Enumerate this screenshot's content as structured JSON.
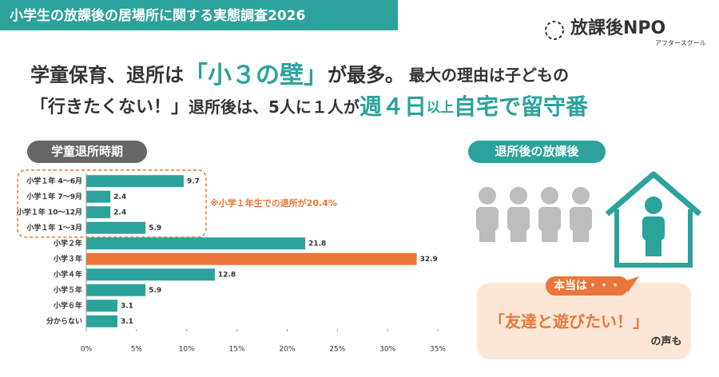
{
  "header": {
    "title": "小学生の放課後の居場所に関する実態調査2026",
    "logo": "放課後NPO",
    "logo_sub": "アフタースクール"
  },
  "headline": {
    "line1": [
      "学童保育、退所は",
      "「小３の壁」",
      "が最多。",
      "最大の理由は子どもの"
    ],
    "line2": [
      "「行きたくない！」",
      "退所後は、5人に１人が",
      "週４日",
      "以上",
      "自宅で留守番"
    ]
  },
  "chart_data": {
    "type": "bar",
    "orientation": "horizontal",
    "title": "学童退所時期",
    "categories": [
      "小学１年 4～6月",
      "小学１年 7～9月",
      "小学１年 10～12月",
      "小学１年 1～3月",
      "小学２年",
      "小学３年",
      "小学４年",
      "小学５年",
      "小学６年",
      "分からない"
    ],
    "values": [
      9.7,
      2.4,
      2.4,
      5.9,
      21.8,
      32.9,
      12.8,
      5.9,
      3.1,
      3.1
    ],
    "colors": [
      "#2ba39b",
      "#2ba39b",
      "#2ba39b",
      "#2ba39b",
      "#2ba39b",
      "#e9763a",
      "#2ba39b",
      "#2ba39b",
      "#2ba39b",
      "#2ba39b"
    ],
    "xlim": [
      0,
      35
    ],
    "xticks": [
      {
        "value": 0,
        "label": "0%"
      },
      {
        "value": 5,
        "label": "5%"
      },
      {
        "value": 10,
        "label": "10%"
      },
      {
        "value": 15,
        "label": "15%"
      },
      {
        "value": 20,
        "label": "20%"
      },
      {
        "value": 25,
        "label": "25%"
      },
      {
        "value": 30,
        "label": "30%"
      },
      {
        "value": 35,
        "label": "35%"
      }
    ],
    "annotation": "※小学１年生での退所が20.4%"
  },
  "side": {
    "title": "退所後の放課後",
    "bubble_tag": "本当は・・・",
    "quote": "「友達と遊びたい！」",
    "quote_tail": "の声も"
  }
}
